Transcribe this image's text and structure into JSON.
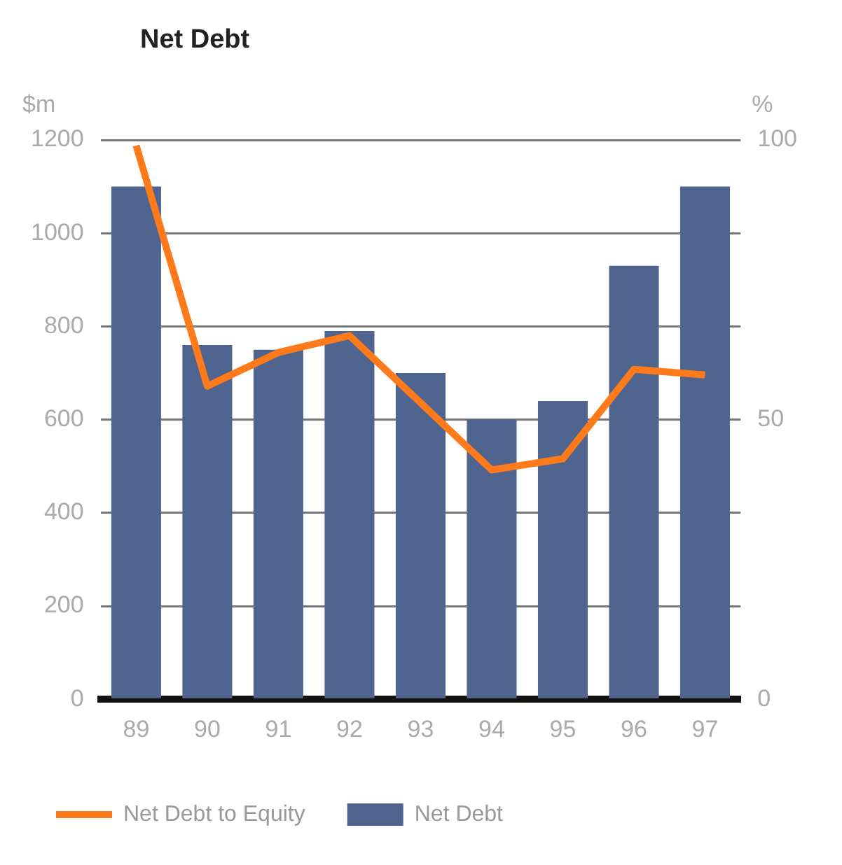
{
  "chart_data": {
    "type": "bar",
    "title": "Net Debt",
    "ylabel": "$m",
    "y2label": "%",
    "categories": [
      "89",
      "90",
      "91",
      "92",
      "93",
      "94",
      "95",
      "96",
      "97"
    ],
    "series": [
      {
        "name": "Net Debt to Equity",
        "type": "line",
        "axis": "y2",
        "color": "#ff7a1a",
        "values": [
          99,
          56,
          62,
          65,
          53,
          41,
          43,
          59,
          58
        ]
      },
      {
        "name": "Net Debt",
        "color": "#4f6590",
        "values": [
          1100,
          760,
          750,
          790,
          700,
          600,
          640,
          930,
          1100
        ]
      }
    ],
    "ylim": [
      0,
      1200
    ],
    "yticks": [
      0,
      200,
      400,
      600,
      800,
      1000,
      1200
    ],
    "y2lim": [
      0,
      100
    ],
    "y2ticks": [
      0,
      50,
      100
    ],
    "grid": "y",
    "legend": "bottom",
    "marker": "none",
    "line_style": "solid"
  }
}
